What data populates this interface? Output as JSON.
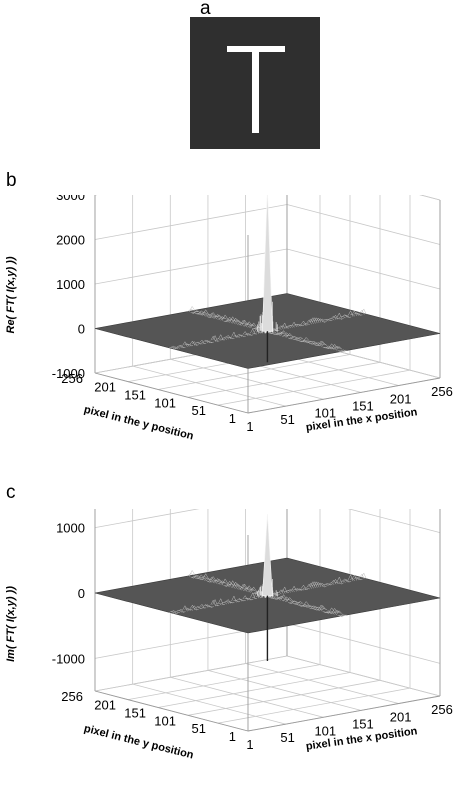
{
  "panel_a": {
    "letter": "a",
    "image_letter": "T"
  },
  "chart_data": [
    {
      "panel": "b",
      "type": "surface",
      "zlabel": "Re( FT( I(x,y) ))",
      "xlabel": "pixel in the x position",
      "ylabel": "pixel in the y position",
      "x_ticks": [
        "1",
        "51",
        "101",
        "151",
        "201",
        "256"
      ],
      "y_ticks": [
        "1",
        "51",
        "101",
        "151",
        "201",
        "256"
      ],
      "z_ticks": [
        -1000,
        0,
        1000,
        2000,
        3000
      ],
      "zlim": [
        -1000,
        3000
      ],
      "xlim": [
        1,
        256
      ],
      "ylim": [
        1,
        256
      ],
      "peak": {
        "x": 128,
        "y": 128,
        "z": 3200
      },
      "min": {
        "z": -700
      },
      "grid": true,
      "surface_color": "#555555"
    },
    {
      "panel": "c",
      "type": "surface",
      "zlabel": "Im( FT( I(x,y) ))",
      "xlabel": "pixel in the x position",
      "ylabel": "pixel in the y position",
      "x_ticks": [
        "1",
        "51",
        "101",
        "151",
        "201",
        "256"
      ],
      "y_ticks": [
        "1",
        "51",
        "101",
        "151",
        "201",
        "256"
      ],
      "z_ticks": [
        -1000,
        0,
        1000
      ],
      "zlim": [
        -1500,
        1500
      ],
      "xlim": [
        1,
        256
      ],
      "ylim": [
        1,
        256
      ],
      "peak": {
        "x": 128,
        "y": 128,
        "z": 1250
      },
      "min": {
        "z": -1000
      },
      "grid": true,
      "surface_color": "#555555"
    }
  ]
}
